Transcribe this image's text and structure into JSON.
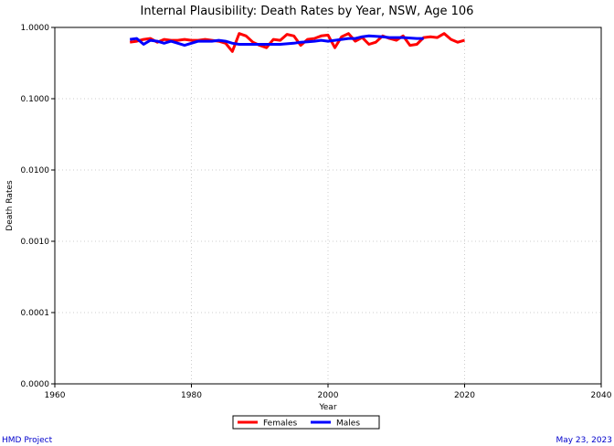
{
  "chart_data": {
    "type": "line",
    "title": "Internal Plausibility: Death Rates by Year, NSW, Age 106",
    "xlabel": "Year",
    "ylabel": "Death Rates",
    "xlim": [
      1960,
      2040
    ],
    "x_ticks": [
      1960,
      1980,
      2000,
      2020,
      2040
    ],
    "x_tick_labels": [
      "1960",
      "1980",
      "2000",
      "2020",
      "2040"
    ],
    "y_scale": "log",
    "ylim": [
      1e-05,
      1
    ],
    "y_ticks": [
      1e-05,
      0.0001,
      0.001,
      0.01,
      0.1,
      1
    ],
    "y_tick_labels": [
      "0.0000",
      "0.0001",
      "0.0010",
      "0.0100",
      "0.1000",
      "1.0000"
    ],
    "grid": true,
    "legend_position": "bottom-center",
    "series": [
      {
        "name": "Females",
        "color": "#ff0000",
        "x": [
          1971,
          1972,
          1973,
          1974,
          1975,
          1976,
          1977,
          1978,
          1979,
          1980,
          1981,
          1982,
          1983,
          1984,
          1985,
          1986,
          1987,
          1988,
          1989,
          1990,
          1991,
          1992,
          1993,
          1994,
          1995,
          1996,
          1997,
          1998,
          1999,
          2000,
          2001,
          2002,
          2003,
          2004,
          2005,
          2006,
          2007,
          2008,
          2009,
          2010,
          2011,
          2012,
          2013,
          2014,
          2015,
          2016,
          2017,
          2018,
          2019,
          2020
        ],
        "y": [
          0.62,
          0.64,
          0.68,
          0.7,
          0.62,
          0.68,
          0.66,
          0.66,
          0.68,
          0.66,
          0.66,
          0.68,
          0.66,
          0.64,
          0.6,
          0.46,
          0.82,
          0.76,
          0.62,
          0.56,
          0.52,
          0.68,
          0.66,
          0.8,
          0.76,
          0.56,
          0.68,
          0.7,
          0.76,
          0.78,
          0.52,
          0.74,
          0.82,
          0.64,
          0.72,
          0.58,
          0.62,
          0.76,
          0.7,
          0.66,
          0.76,
          0.56,
          0.58,
          0.72,
          0.74,
          0.72,
          0.82,
          0.68,
          0.62,
          0.66
        ]
      },
      {
        "name": "Males",
        "color": "#0000ff",
        "x": [
          1971,
          1972,
          1973,
          1974,
          1975,
          1976,
          1977,
          1978,
          1979,
          1980,
          1981,
          1982,
          1983,
          1984,
          1985,
          1986,
          1987,
          1988,
          1989,
          1990,
          1991,
          1992,
          1993,
          1994,
          1995,
          1996,
          1997,
          1998,
          1999,
          2000,
          2001,
          2002,
          2003,
          2004,
          2005,
          2006,
          2007,
          2008,
          2009,
          2010,
          2011,
          2012,
          2013,
          2014
        ],
        "y": [
          0.68,
          0.7,
          0.58,
          0.66,
          0.64,
          0.6,
          0.64,
          0.6,
          0.56,
          0.6,
          0.64,
          0.64,
          0.64,
          0.66,
          0.64,
          0.6,
          0.58,
          0.58,
          0.58,
          0.58,
          0.58,
          0.58,
          0.58,
          0.59,
          0.6,
          0.62,
          0.63,
          0.64,
          0.66,
          0.64,
          0.66,
          0.68,
          0.7,
          0.7,
          0.74,
          0.76,
          0.75,
          0.74,
          0.72,
          0.72,
          0.72,
          0.71,
          0.7,
          0.7
        ]
      }
    ]
  },
  "footer": {
    "left": "HMD Project",
    "right": "May 23, 2023"
  }
}
